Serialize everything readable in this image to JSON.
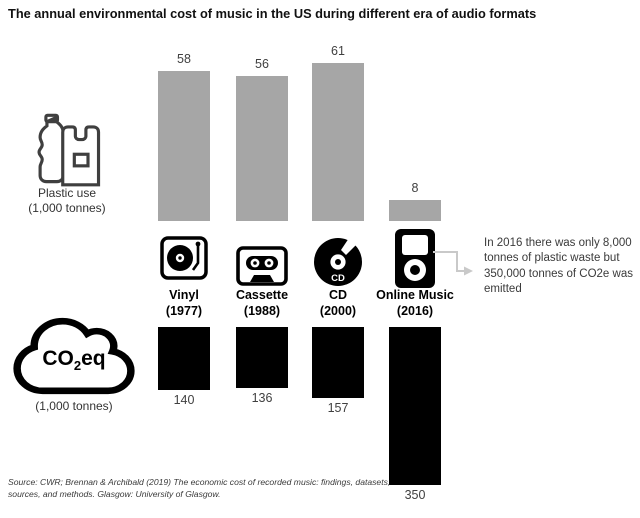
{
  "title": "The annual environmental cost of music in the US during different era of audio formats",
  "legend": {
    "plastic": {
      "line1": "Plastic use",
      "line2": "(1,000 tonnes)"
    },
    "co2": {
      "pre": "CO",
      "sub": "2",
      "post": "eq",
      "unit": "(1,000 tonnes)"
    }
  },
  "chart_data": {
    "type": "bar",
    "title": "The annual environmental cost of music in the US during different era of audio formats",
    "categories": [
      "Vinyl (1977)",
      "Cassette (1988)",
      "CD (2000)",
      "Online Music (2016)"
    ],
    "series": [
      {
        "name": "Plastic use (1,000 tonnes)",
        "color": "#a6a6a6",
        "direction": "up",
        "values": [
          58,
          56,
          61,
          8
        ]
      },
      {
        "name": "CO2eq (1,000 tonnes)",
        "color": "#000000",
        "direction": "down",
        "values": [
          140,
          136,
          157,
          350
        ]
      }
    ],
    "data_labels": true,
    "axes": "hidden",
    "grid": false,
    "legend_position": "left-pictograms"
  },
  "formats": [
    {
      "name": "Vinyl",
      "year": "(1977)",
      "icon": "turntable-icon"
    },
    {
      "name": "Cassette",
      "year": "(1988)",
      "icon": "cassette-icon"
    },
    {
      "name": "CD",
      "year": "(2000)",
      "icon": "cd-icon"
    },
    {
      "name": "Online Music",
      "year": "(2016)",
      "icon": "ipod-icon"
    }
  ],
  "cd_icon_label": "CD",
  "annotation": "In 2016 there was only 8,000 tonnes of plastic waste but 350,000 tonnes of CO2e was emitted",
  "source": "Source: CWR; Brennan & Archibald (2019) The economic cost of recorded music: findings, datasets, sources, and methods. Glasgow: University of Glasgow.",
  "colors": {
    "plastic_bar": "#a6a6a6",
    "co2_bar": "#000000",
    "arrow": "#c9c9c9",
    "icon_gray": "#3f3f3f"
  }
}
